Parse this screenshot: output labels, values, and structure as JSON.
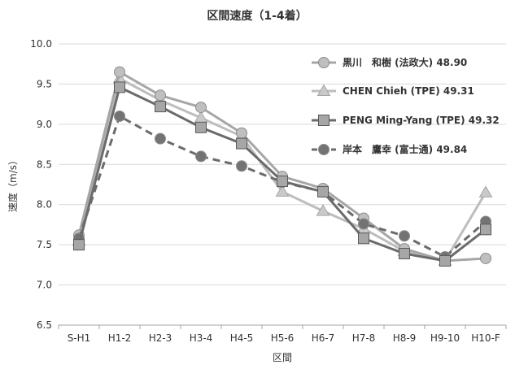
{
  "chart_data": {
    "type": "line",
    "title": "区間速度（1-4着）",
    "xlabel": "区間",
    "ylabel": "速度（m/s）",
    "ylim": [
      6.5,
      10.0
    ],
    "yticks": [
      "6.5",
      "7.0",
      "7.5",
      "8.0",
      "8.5",
      "9.0",
      "9.5",
      "10.0"
    ],
    "grid": "horizontal",
    "legend_position": "top-right",
    "categories": [
      "S-H1",
      "H1-2",
      "H2-3",
      "H3-4",
      "H4-5",
      "H5-6",
      "H6-7",
      "H7-8",
      "H8-9",
      "H9-10",
      "H10-F"
    ],
    "series": [
      {
        "name": "黒川　和樹 (法政大) 48.90",
        "marker": "circle",
        "line_style": "solid",
        "color": "#a6a6a6",
        "values": [
          7.62,
          9.65,
          9.36,
          9.21,
          8.89,
          8.35,
          8.2,
          7.83,
          7.45,
          7.3,
          7.33
        ]
      },
      {
        "name": "CHEN Chieh (TPE) 49.31",
        "marker": "triangle",
        "line_style": "solid",
        "color": "#bdbdbd",
        "values": [
          7.55,
          9.57,
          9.3,
          9.08,
          8.85,
          8.16,
          7.92,
          7.7,
          7.42,
          7.3,
          8.15
        ]
      },
      {
        "name": "PENG Ming-Yang (TPE) 49.32",
        "marker": "square",
        "line_style": "solid",
        "color": "#6e6e6e",
        "values": [
          7.5,
          9.46,
          9.22,
          8.96,
          8.76,
          8.29,
          8.16,
          7.58,
          7.39,
          7.3,
          7.69
        ]
      },
      {
        "name": "岸本　鷹幸 (富士通) 49.84",
        "marker": "circle",
        "line_style": "dashed",
        "color": "#6e6e6e",
        "values": [
          7.58,
          9.1,
          8.82,
          8.6,
          8.48,
          8.28,
          8.16,
          7.76,
          7.61,
          7.35,
          7.79
        ]
      }
    ]
  }
}
